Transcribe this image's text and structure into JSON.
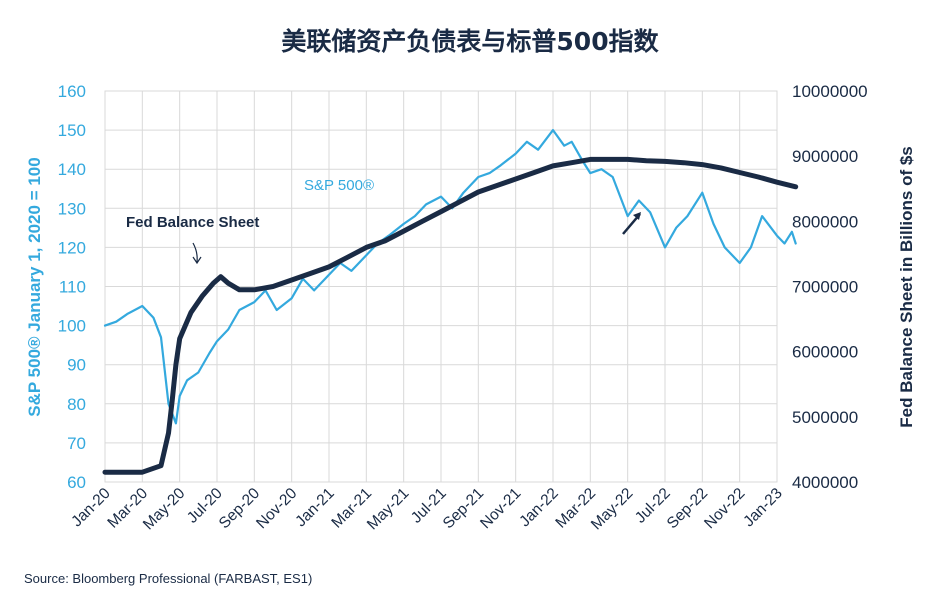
{
  "chart_data": {
    "type": "line",
    "title": "美联储资产负债表与标普500指数",
    "source": "Source: Bloomberg Professional (FARBAST, ES1)",
    "x_tick_labels": [
      "Jan-20",
      "Mar-20",
      "May-20",
      "Jul-20",
      "Sep-20",
      "Nov-20",
      "Jan-21",
      "Mar-21",
      "May-21",
      "Jul-21",
      "Sep-21",
      "Nov-21",
      "Jan-22",
      "Mar-22",
      "May-22",
      "Jul-22",
      "Sep-22",
      "Nov-22",
      "Jan-23"
    ],
    "y_left": {
      "label": "S&P 500® January 1, 2020 = 100",
      "range": [
        60,
        160
      ],
      "ticks": [
        "60",
        "70",
        "80",
        "90",
        "100",
        "110",
        "120",
        "130",
        "140",
        "150",
        "160"
      ]
    },
    "y_right": {
      "label": "Fed Balance Sheet in Billions of $s",
      "range": [
        4000000,
        10000000
      ],
      "ticks": [
        "4000000",
        "5000000",
        "6000000",
        "7000000",
        "8000000",
        "9000000",
        "10000000"
      ]
    },
    "grid": true,
    "series": [
      {
        "name": "S&P 500®",
        "axis": "left",
        "color": "#34a9de",
        "x": [
          0,
          0.3,
          0.6,
          1.0,
          1.3,
          1.5,
          1.7,
          1.9,
          2.0,
          2.2,
          2.5,
          2.8,
          3.0,
          3.3,
          3.6,
          4.0,
          4.3,
          4.6,
          5.0,
          5.3,
          5.6,
          6.0,
          6.3,
          6.6,
          7.0,
          7.3,
          7.6,
          8.0,
          8.3,
          8.6,
          9.0,
          9.3,
          9.6,
          10.0,
          10.3,
          10.6,
          11.0,
          11.3,
          11.6,
          12.0,
          12.3,
          12.5,
          12.8,
          13.0,
          13.3,
          13.6,
          14.0,
          14.3,
          14.6,
          15.0,
          15.3,
          15.6,
          16.0,
          16.3,
          16.6,
          17.0,
          17.3,
          17.6,
          18.0,
          18.2,
          18.4,
          18.5
        ],
        "values": [
          100,
          101,
          103,
          105,
          102,
          97,
          80,
          75,
          82,
          86,
          88,
          93,
          96,
          99,
          104,
          106,
          109,
          104,
          107,
          112,
          109,
          113,
          116,
          114,
          118,
          121,
          123,
          126,
          128,
          131,
          133,
          130,
          134,
          138,
          139,
          141,
          144,
          147,
          145,
          150,
          146,
          147,
          142,
          139,
          140,
          138,
          128,
          132,
          129,
          120,
          125,
          128,
          134,
          126,
          120,
          116,
          120,
          128,
          123,
          121,
          124,
          121
        ]
      },
      {
        "name": "Fed Balance Sheet",
        "axis": "right",
        "color": "#1a2b45",
        "x": [
          0,
          1.0,
          1.5,
          1.7,
          1.8,
          1.9,
          2.0,
          2.3,
          2.6,
          2.9,
          3.1,
          3.3,
          3.6,
          4.0,
          4.5,
          5.0,
          5.5,
          6.0,
          6.5,
          7.0,
          7.5,
          8.0,
          8.5,
          9.0,
          9.5,
          10.0,
          10.5,
          11.0,
          11.5,
          12.0,
          12.5,
          13.0,
          13.5,
          14.0,
          14.5,
          15.0,
          15.5,
          16.0,
          16.5,
          17.0,
          17.5,
          18.0,
          18.5
        ],
        "values": [
          4150000,
          4150000,
          4250000,
          4750000,
          5250000,
          5800000,
          6200000,
          6600000,
          6850000,
          7050000,
          7150000,
          7050000,
          6950000,
          6950000,
          7000000,
          7100000,
          7200000,
          7300000,
          7450000,
          7600000,
          7700000,
          7850000,
          8000000,
          8150000,
          8300000,
          8450000,
          8550000,
          8650000,
          8750000,
          8850000,
          8900000,
          8950000,
          8950000,
          8950000,
          8930000,
          8920000,
          8900000,
          8870000,
          8820000,
          8750000,
          8680000,
          8600000,
          8530000
        ]
      }
    ],
    "annotations": {
      "sp500": "S&P 500®",
      "fed": "Fed Balance Sheet"
    },
    "colors": {
      "sp500": "#34a9de",
      "fed": "#1a2b45",
      "grid": "#d9d9d9"
    }
  }
}
